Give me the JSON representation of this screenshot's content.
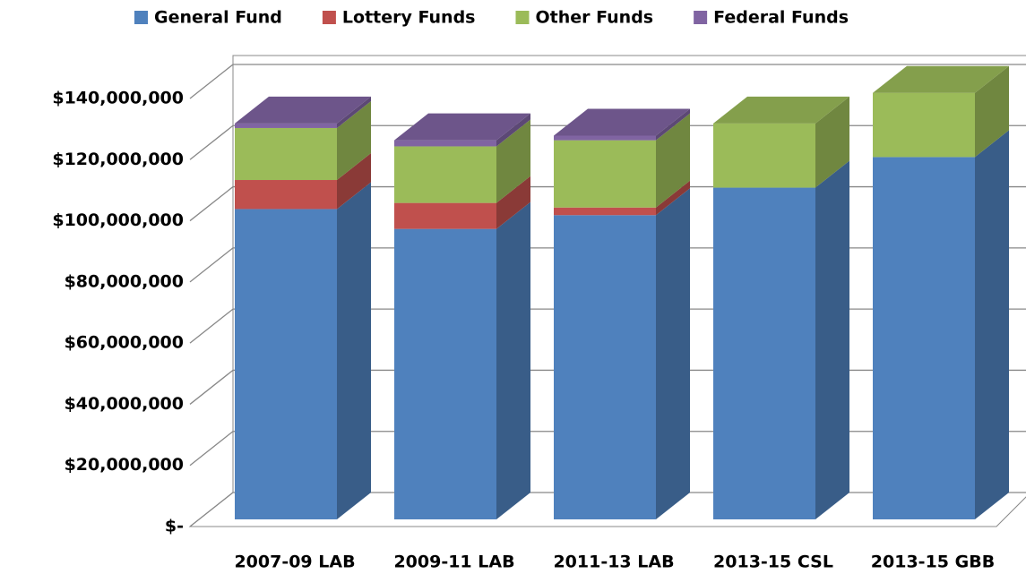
{
  "chart_data": {
    "type": "bar3d_stacked",
    "categories": [
      "2007-09 LAB",
      "2009-11 LAB",
      "2011-13 LAB",
      "2013-15 CSL",
      "2013-15 GBB"
    ],
    "series": [
      {
        "name": "General Fund",
        "color": "#4f81bd",
        "values": [
          101500000,
          95000000,
          99500000,
          108500000,
          118500000
        ]
      },
      {
        "name": "Lottery Funds",
        "color": "#c0504d",
        "values": [
          9500000,
          8500000,
          2500000,
          0,
          0
        ]
      },
      {
        "name": "Other Funds",
        "color": "#9bbb59",
        "values": [
          17000000,
          18500000,
          22000000,
          21000000,
          21000000
        ]
      },
      {
        "name": "Federal Funds",
        "color": "#8064a2",
        "values": [
          1500000,
          2000000,
          1500000,
          0,
          0
        ]
      }
    ],
    "ylim": [
      0,
      140000000
    ],
    "yticks": [
      {
        "value": 0,
        "label": "$-"
      },
      {
        "value": 20000000,
        "label": "$20,000,000"
      },
      {
        "value": 40000000,
        "label": "$40,000,000"
      },
      {
        "value": 60000000,
        "label": "$60,000,000"
      },
      {
        "value": 80000000,
        "label": "$80,000,000"
      },
      {
        "value": 100000000,
        "label": "$100,000,000"
      },
      {
        "value": 120000000,
        "label": "$120,000,000"
      },
      {
        "value": 140000000,
        "label": "$140,000,000"
      }
    ],
    "grid": true,
    "legend": "top"
  }
}
